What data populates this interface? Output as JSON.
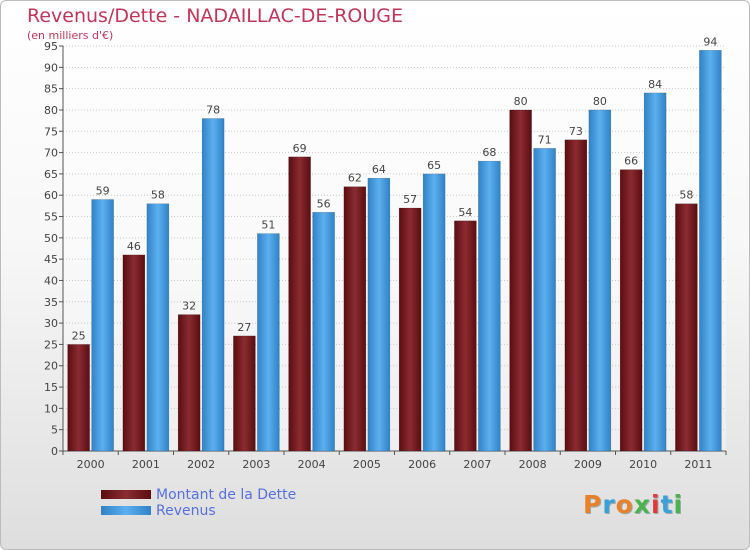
{
  "chart_data": {
    "type": "bar",
    "title": "Revenus/Dette - NADAILLAC-DE-ROUGE",
    "subtitle": "(en milliers d'€)",
    "categories": [
      "2000",
      "2001",
      "2002",
      "2003",
      "2004",
      "2005",
      "2006",
      "2007",
      "2008",
      "2009",
      "2010",
      "2011"
    ],
    "series": [
      {
        "name": "Montant de la Dette",
        "color": "#7a1e22",
        "values": [
          25,
          46,
          32,
          27,
          69,
          62,
          57,
          54,
          80,
          73,
          66,
          58
        ]
      },
      {
        "name": "Revenus",
        "color": "#4a9fe0",
        "values": [
          59,
          58,
          78,
          51,
          56,
          64,
          65,
          68,
          71,
          80,
          84,
          94
        ]
      }
    ],
    "ylim": [
      0,
      95
    ],
    "ytick_step": 5,
    "grid": true,
    "legend_position": "bottom-left"
  },
  "logo": {
    "text": "Proxiti",
    "colors": [
      "#e8812a",
      "#3aa0d8",
      "#e8812a",
      "#4bb34b",
      "#e23a3a",
      "#3aa0d8",
      "#4bb34b"
    ]
  }
}
